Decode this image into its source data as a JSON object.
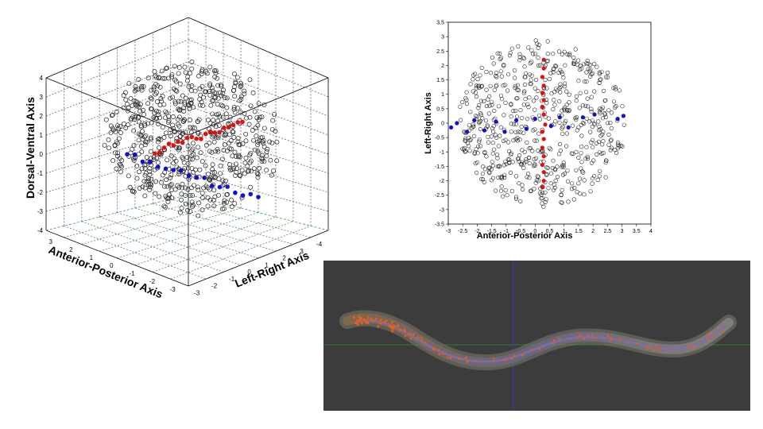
{
  "plot3d": {
    "type": "scatter",
    "z_label": "Dorsal-Ventral Axis",
    "x_label": "Anterior-Posterior Axis",
    "y_label": "Left-Right Axis",
    "z_ticks": [
      "4",
      "3",
      "2",
      "1",
      "0",
      "-1",
      "-2",
      "-3",
      "-4"
    ],
    "x_ticks": [
      "3",
      "2",
      "1",
      "0",
      "-1",
      "-2",
      "-3"
    ],
    "y_ticks": [
      "-3",
      "-2",
      "-1",
      "0",
      "1",
      "2",
      "3",
      "-4"
    ],
    "colors": {
      "cloud": "#222222",
      "red": "#e01010",
      "blue": "#1010d0"
    }
  },
  "plot2d": {
    "type": "scatter",
    "ylabel": "Left-Right Axis",
    "xlabel": "Anterior-Posterior Axis",
    "xlim": [
      -3,
      4
    ],
    "ylim": [
      -3.5,
      3.5
    ],
    "x_ticks": [
      "-3",
      "-2.5",
      "-2",
      "-1.5",
      "-1",
      "-0.5",
      "0",
      "0.5",
      "1",
      "1.5",
      "2",
      "2.5",
      "3",
      "3.5",
      "4"
    ],
    "y_ticks": [
      "3.5",
      "3",
      "2.5",
      "2",
      "1.5",
      "1",
      "0.5",
      "0",
      "-0.5",
      "-1",
      "-1.5",
      "-2",
      "-2.5",
      "-3",
      "-3.5"
    ],
    "series": [
      {
        "color": "#e01010",
        "points": [
          [
            0.3,
            2.2
          ],
          [
            0.3,
            1.9
          ],
          [
            0.25,
            1.6
          ],
          [
            0.3,
            1.3
          ],
          [
            0.25,
            1.05
          ],
          [
            0.3,
            0.8
          ],
          [
            0.25,
            0.55
          ],
          [
            0.3,
            0.3
          ],
          [
            0.35,
            -0.05
          ],
          [
            0.25,
            -0.3
          ],
          [
            0.3,
            -0.55
          ],
          [
            0.25,
            -0.85
          ],
          [
            0.3,
            -1.15
          ],
          [
            0.25,
            -1.45
          ],
          [
            0.3,
            -1.7
          ],
          [
            0.3,
            -2.0
          ],
          [
            0.25,
            -2.2
          ]
        ]
      },
      {
        "color": "#1010d0",
        "points": [
          [
            -2.9,
            -0.15
          ],
          [
            -2.7,
            0.0
          ],
          [
            -2.35,
            -0.3
          ],
          [
            -2.1,
            0.1
          ],
          [
            -1.75,
            -0.25
          ],
          [
            -1.35,
            0.05
          ],
          [
            -1.05,
            -0.3
          ],
          [
            -0.65,
            0.1
          ],
          [
            -0.3,
            -0.2
          ],
          [
            0.0,
            0.15
          ],
          [
            0.55,
            -0.1
          ],
          [
            0.85,
            0.2
          ],
          [
            1.15,
            -0.15
          ],
          [
            1.65,
            0.2
          ],
          [
            2.05,
            0.3
          ],
          [
            2.85,
            0.15
          ],
          [
            3.05,
            0.25
          ]
        ]
      }
    ]
  },
  "worm": {
    "background": "#3c3c3c",
    "crosshair_h": "#2f7a2f",
    "crosshair_v": "#3a3ab0",
    "nucleus_color": "#e0601c"
  }
}
